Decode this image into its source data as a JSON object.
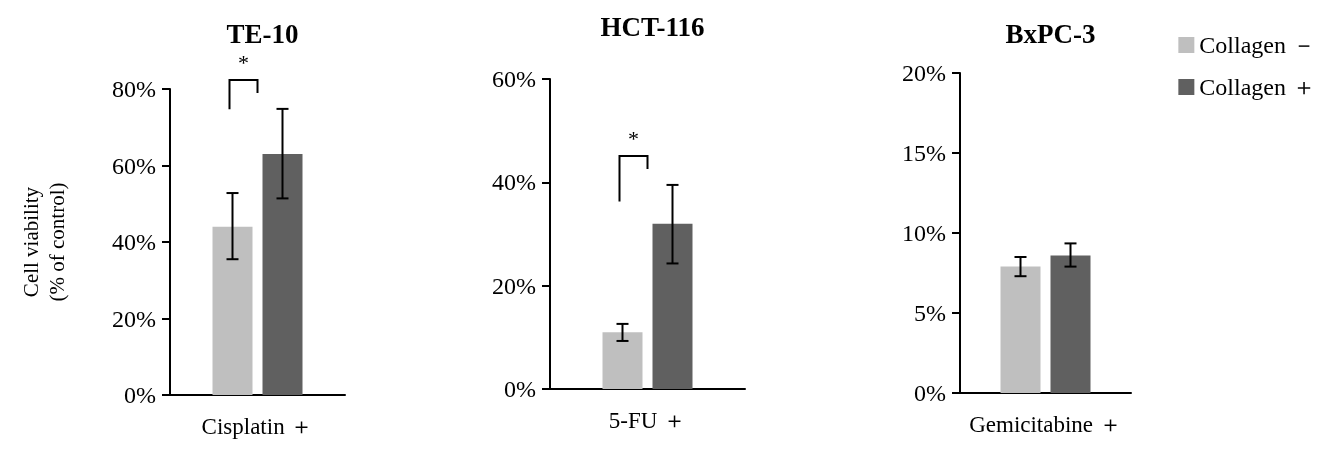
{
  "chart_data": [
    {
      "type": "bar",
      "title": "TE-10",
      "ylabel": "Cell viability\n(% of control)",
      "categories": [
        "Cisplatin ＋"
      ],
      "series": [
        {
          "color": "#bfbfbf",
          "values": [
            44
          ],
          "errors": [
            [
              35.5,
              52.8
            ]
          ]
        },
        {
          "color": "#606060",
          "values": [
            63
          ],
          "errors": [
            [
              51.4,
              74.8
            ]
          ]
        }
      ],
      "ylim": [
        0,
        80
      ],
      "yticks": [
        {
          "value": 0,
          "label": "0%"
        },
        {
          "value": 20,
          "label": "20%"
        },
        {
          "value": 40,
          "label": "40%"
        },
        {
          "value": 60,
          "label": "60%"
        },
        {
          "value": 80,
          "label": "80%"
        }
      ],
      "annotations": [
        "*"
      ]
    },
    {
      "type": "bar",
      "title": "HCT-116",
      "categories": [
        "5-FU ＋"
      ],
      "series": [
        {
          "color": "#bfbfbf",
          "values": [
            11
          ],
          "errors": [
            [
              9.3,
              12.6
            ]
          ]
        },
        {
          "color": "#606060",
          "values": [
            32
          ],
          "errors": [
            [
              24.3,
              39.5
            ]
          ]
        }
      ],
      "ylim": [
        0,
        60
      ],
      "yticks": [
        {
          "value": 0,
          "label": "0%"
        },
        {
          "value": 20,
          "label": "20%"
        },
        {
          "value": 40,
          "label": "40%"
        },
        {
          "value": 60,
          "label": "60%"
        }
      ],
      "annotations": [
        "*"
      ]
    },
    {
      "type": "bar",
      "title": "BxPC-3",
      "categories": [
        "Gemicitabine ＋"
      ],
      "series": [
        {
          "name": "Collagen －",
          "color": "#bfbfbf",
          "values": [
            7.9
          ],
          "errors": [
            [
              7.3,
              8.5
            ]
          ]
        },
        {
          "name": "Collagen ＋",
          "color": "#606060",
          "values": [
            8.6
          ],
          "errors": [
            [
              7.9,
              9.35
            ]
          ]
        }
      ],
      "ylim": [
        0,
        20
      ],
      "yticks": [
        {
          "value": 0,
          "label": "0%"
        },
        {
          "value": 5,
          "label": "5%"
        },
        {
          "value": 10,
          "label": "10%"
        },
        {
          "value": 15,
          "label": "15%"
        },
        {
          "value": 20,
          "label": "20%"
        }
      ],
      "legend": "top right"
    }
  ]
}
